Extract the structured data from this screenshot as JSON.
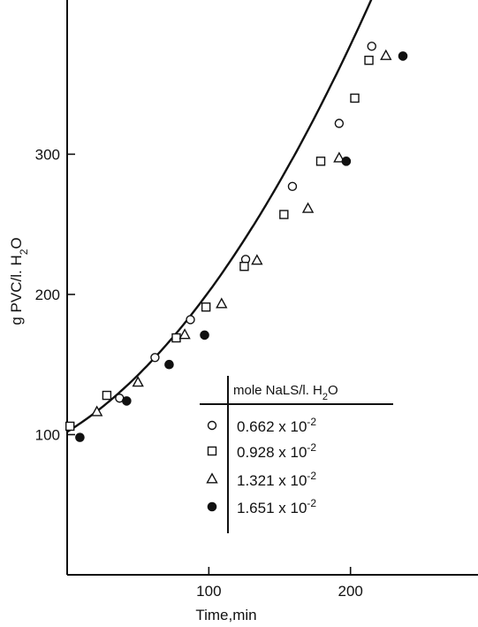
{
  "chart_data": {
    "type": "scatter",
    "title": "",
    "xlabel": "Time,min",
    "ylabel_parts": {
      "main": "g PVC/l. H",
      "sub": "2",
      "tail": "O"
    },
    "xlim": [
      0,
      290
    ],
    "ylim": [
      0,
      410
    ],
    "x_ticks": [
      100,
      200
    ],
    "y_ticks": [
      100,
      200,
      300
    ],
    "grid": false,
    "legend": {
      "placement": "lower-right",
      "header_parts": {
        "main": "mole NaLS/l. H",
        "sub": "2",
        "tail": "O"
      }
    },
    "series": [
      {
        "name": "0.662 x 10",
        "exponent": "-2",
        "marker": "circle-open",
        "points": [
          [
            37,
            126
          ],
          [
            62,
            155
          ],
          [
            87,
            182
          ],
          [
            126,
            225
          ],
          [
            159,
            277
          ],
          [
            192,
            322
          ],
          [
            215,
            377
          ]
        ]
      },
      {
        "name": "0.928 x 10",
        "exponent": "-2",
        "marker": "square-open",
        "points": [
          [
            2,
            106
          ],
          [
            28,
            128
          ],
          [
            77,
            169
          ],
          [
            98,
            191
          ],
          [
            125,
            220
          ],
          [
            153,
            257
          ],
          [
            179,
            295
          ],
          [
            203,
            340
          ],
          [
            213,
            367
          ]
        ]
      },
      {
        "name": "1.321 x 10",
        "exponent": "-2",
        "marker": "triangle-open",
        "points": [
          [
            21,
            116
          ],
          [
            50,
            137
          ],
          [
            83,
            171
          ],
          [
            109,
            193
          ],
          [
            134,
            224
          ],
          [
            170,
            261
          ],
          [
            192,
            297
          ],
          [
            225,
            370
          ]
        ]
      },
      {
        "name": "1.651 x 10",
        "exponent": "-2",
        "marker": "circle-filled",
        "points": [
          [
            9,
            98
          ],
          [
            42,
            124
          ],
          [
            72,
            150
          ],
          [
            97,
            171
          ],
          [
            197,
            295
          ],
          [
            237,
            370
          ]
        ]
      }
    ],
    "fit_curve": {
      "type": "quadratic",
      "coefficients": [
        102,
        0.62,
        0.0038
      ],
      "x_range": [
        0,
        230
      ]
    }
  }
}
